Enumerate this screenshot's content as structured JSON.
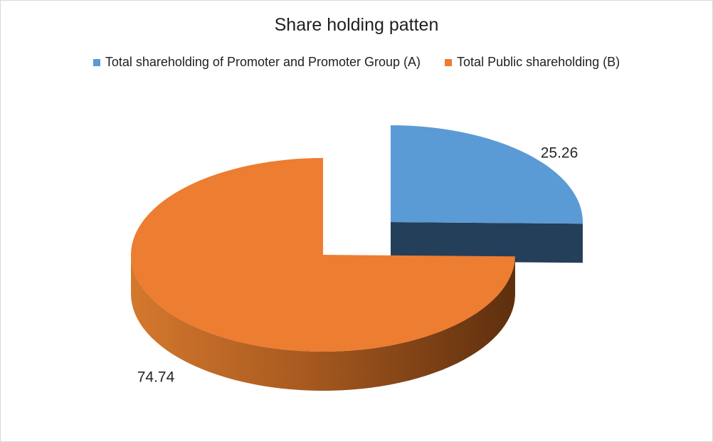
{
  "chart_data": {
    "type": "pie",
    "title": "Share holding patten",
    "style": "3d-exploded",
    "legend_position": "top",
    "categories": [
      "Total shareholding of Promoter and Promoter Group (A)",
      "Total Public shareholding (B)"
    ],
    "values": [
      25.26,
      74.74
    ],
    "data_labels": [
      "25.26",
      "74.74"
    ],
    "colors": [
      "#5b9bd5",
      "#ed7d31"
    ],
    "side_colors": [
      "#243f5a",
      "#8a4a1a"
    ]
  }
}
